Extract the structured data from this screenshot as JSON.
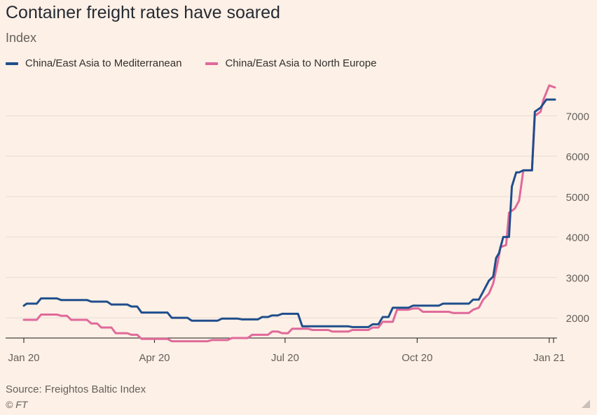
{
  "header": {
    "title": "Container freight rates have soared",
    "subtitle": "Index"
  },
  "footer": {
    "source": "Source: Freightos Baltic Index",
    "copyright": "© FT"
  },
  "colors": {
    "background": "#fdf0e6",
    "gridline": "#e9ddd3",
    "axis": "#66605c"
  },
  "chart_data": {
    "type": "line",
    "title": "Container freight rates have soared",
    "subtitle": "Index",
    "ylabel": "",
    "xlabel": "",
    "x_range": [
      "2020-01-01",
      "2021-01-05"
    ],
    "ylim": [
      1500,
      7700
    ],
    "y_ticks": [
      2000,
      3000,
      4000,
      5000,
      6000,
      7000
    ],
    "x_ticks": [
      {
        "label": "Jan 20",
        "date": "2020-01-01"
      },
      {
        "label": "Apr 20",
        "date": "2020-04-01"
      },
      {
        "label": "Jul 20",
        "date": "2020-07-01"
      },
      {
        "label": "Oct 20",
        "date": "2020-10-01"
      },
      {
        "label": "Jan 21",
        "date": "2021-01-01"
      }
    ],
    "grid": true,
    "legend_position": "top-left",
    "series": [
      {
        "name": "China/East Asia to Mediterranean",
        "color": "#1f4e8c",
        "points": [
          [
            "2020-01-01",
            2300
          ],
          [
            "2020-01-03",
            2350
          ],
          [
            "2020-01-10",
            2350
          ],
          [
            "2020-01-13",
            2480
          ],
          [
            "2020-01-24",
            2480
          ],
          [
            "2020-01-27",
            2440
          ],
          [
            "2020-02-14",
            2440
          ],
          [
            "2020-02-17",
            2400
          ],
          [
            "2020-02-28",
            2400
          ],
          [
            "2020-03-02",
            2330
          ],
          [
            "2020-03-13",
            2330
          ],
          [
            "2020-03-16",
            2280
          ],
          [
            "2020-03-20",
            2280
          ],
          [
            "2020-03-23",
            2130
          ],
          [
            "2020-04-10",
            2130
          ],
          [
            "2020-04-13",
            2000
          ],
          [
            "2020-04-24",
            2000
          ],
          [
            "2020-04-27",
            1930
          ],
          [
            "2020-05-15",
            1930
          ],
          [
            "2020-05-18",
            1980
          ],
          [
            "2020-05-29",
            1980
          ],
          [
            "2020-06-01",
            1960
          ],
          [
            "2020-06-12",
            1960
          ],
          [
            "2020-06-15",
            2020
          ],
          [
            "2020-06-19",
            2020
          ],
          [
            "2020-06-22",
            2060
          ],
          [
            "2020-06-26",
            2060
          ],
          [
            "2020-06-29",
            2100
          ],
          [
            "2020-07-10",
            2100
          ],
          [
            "2020-07-13",
            1790
          ],
          [
            "2020-08-14",
            1790
          ],
          [
            "2020-08-17",
            1770
          ],
          [
            "2020-08-28",
            1770
          ],
          [
            "2020-08-31",
            1840
          ],
          [
            "2020-09-04",
            1840
          ],
          [
            "2020-09-07",
            2020
          ],
          [
            "2020-09-11",
            2020
          ],
          [
            "2020-09-14",
            2250
          ],
          [
            "2020-09-25",
            2250
          ],
          [
            "2020-09-28",
            2300
          ],
          [
            "2020-10-16",
            2300
          ],
          [
            "2020-10-19",
            2350
          ],
          [
            "2020-11-06",
            2350
          ],
          [
            "2020-11-09",
            2450
          ],
          [
            "2020-11-13",
            2450
          ],
          [
            "2020-11-16",
            2650
          ],
          [
            "2020-11-20",
            2920
          ],
          [
            "2020-11-23",
            3020
          ],
          [
            "2020-11-25",
            3480
          ],
          [
            "2020-11-27",
            3600
          ],
          [
            "2020-11-30",
            4000
          ],
          [
            "2020-12-04",
            4000
          ],
          [
            "2020-12-06",
            5250
          ],
          [
            "2020-12-09",
            5600
          ],
          [
            "2020-12-11",
            5600
          ],
          [
            "2020-12-14",
            5650
          ],
          [
            "2020-12-20",
            5650
          ],
          [
            "2020-12-22",
            7100
          ],
          [
            "2020-12-26",
            7200
          ],
          [
            "2020-12-30",
            7400
          ],
          [
            "2021-01-05",
            7400
          ]
        ]
      },
      {
        "name": "China/East Asia to North Europe",
        "color": "#e0699a",
        "points": [
          [
            "2020-01-01",
            1950
          ],
          [
            "2020-01-10",
            1950
          ],
          [
            "2020-01-13",
            2080
          ],
          [
            "2020-01-24",
            2080
          ],
          [
            "2020-01-27",
            2050
          ],
          [
            "2020-01-31",
            2050
          ],
          [
            "2020-02-03",
            1950
          ],
          [
            "2020-02-14",
            1950
          ],
          [
            "2020-02-17",
            1860
          ],
          [
            "2020-02-21",
            1860
          ],
          [
            "2020-02-24",
            1760
          ],
          [
            "2020-03-02",
            1760
          ],
          [
            "2020-03-05",
            1620
          ],
          [
            "2020-03-13",
            1620
          ],
          [
            "2020-03-16",
            1580
          ],
          [
            "2020-03-20",
            1580
          ],
          [
            "2020-03-23",
            1480
          ],
          [
            "2020-04-10",
            1480
          ],
          [
            "2020-04-13",
            1420
          ],
          [
            "2020-05-08",
            1420
          ],
          [
            "2020-05-11",
            1450
          ],
          [
            "2020-05-22",
            1450
          ],
          [
            "2020-05-25",
            1500
          ],
          [
            "2020-06-05",
            1500
          ],
          [
            "2020-06-08",
            1580
          ],
          [
            "2020-06-19",
            1580
          ],
          [
            "2020-06-22",
            1660
          ],
          [
            "2020-06-26",
            1660
          ],
          [
            "2020-06-29",
            1620
          ],
          [
            "2020-07-03",
            1620
          ],
          [
            "2020-07-06",
            1730
          ],
          [
            "2020-07-17",
            1730
          ],
          [
            "2020-07-20",
            1700
          ],
          [
            "2020-07-31",
            1700
          ],
          [
            "2020-08-03",
            1660
          ],
          [
            "2020-08-14",
            1660
          ],
          [
            "2020-08-17",
            1700
          ],
          [
            "2020-08-28",
            1700
          ],
          [
            "2020-08-31",
            1760
          ],
          [
            "2020-09-04",
            1760
          ],
          [
            "2020-09-07",
            1900
          ],
          [
            "2020-09-14",
            1900
          ],
          [
            "2020-09-17",
            2200
          ],
          [
            "2020-09-25",
            2200
          ],
          [
            "2020-09-28",
            2230
          ],
          [
            "2020-10-02",
            2230
          ],
          [
            "2020-10-05",
            2150
          ],
          [
            "2020-10-23",
            2150
          ],
          [
            "2020-10-26",
            2120
          ],
          [
            "2020-11-06",
            2120
          ],
          [
            "2020-11-09",
            2200
          ],
          [
            "2020-11-13",
            2250
          ],
          [
            "2020-11-16",
            2450
          ],
          [
            "2020-11-20",
            2600
          ],
          [
            "2020-11-23",
            2850
          ],
          [
            "2020-11-26",
            3350
          ],
          [
            "2020-11-28",
            3750
          ],
          [
            "2020-12-02",
            3800
          ],
          [
            "2020-12-04",
            4600
          ],
          [
            "2020-12-08",
            4700
          ],
          [
            "2020-12-11",
            4900
          ],
          [
            "2020-12-14",
            5650
          ],
          [
            "2020-12-20",
            5650
          ],
          [
            "2020-12-22",
            7000
          ],
          [
            "2020-12-26",
            7100
          ],
          [
            "2020-12-28",
            7400
          ],
          [
            "2021-01-01",
            7750
          ],
          [
            "2021-01-05",
            7700
          ]
        ]
      }
    ]
  }
}
